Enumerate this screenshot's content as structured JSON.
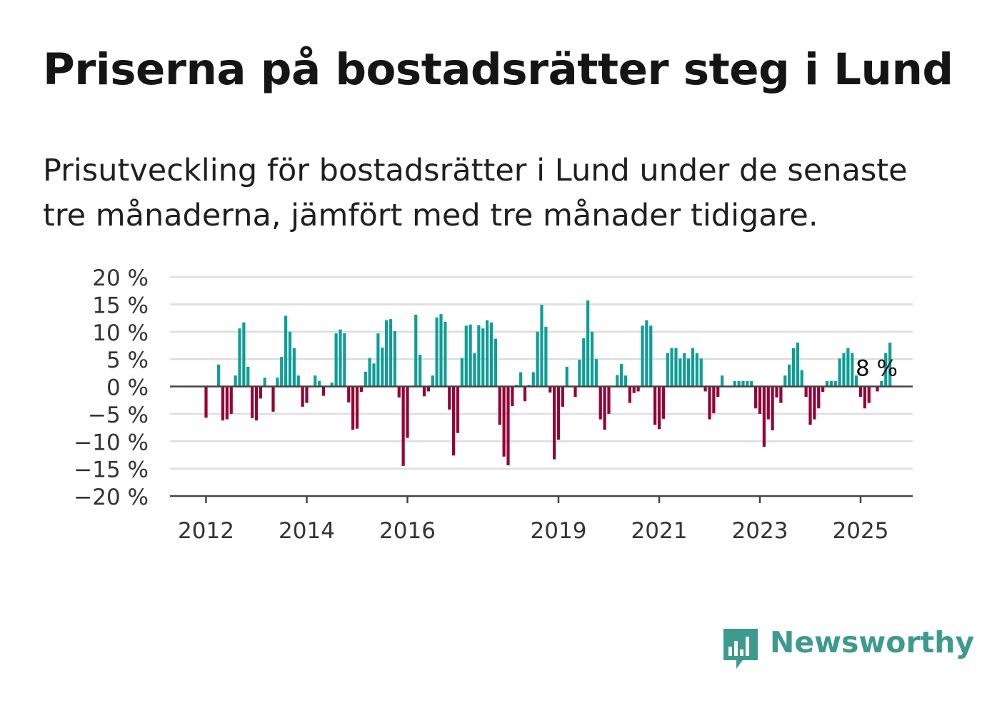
{
  "title": "Priserna på bostadsrätter steg i Lund",
  "subtitle": "Prisutveckling för bostadsrätter i Lund under de senaste tre månaderna, jämfört med tre månader tidigare.",
  "brand": "Newsworthy",
  "colors": {
    "positive": "#0f9e96",
    "negative": "#960035",
    "grid": "#dddddd",
    "axis": "#444444",
    "text": "#333333"
  },
  "chart_data": {
    "type": "bar",
    "ylim": [
      -20,
      20
    ],
    "yticks": [
      {
        "v": 20,
        "label": "20 %"
      },
      {
        "v": 15,
        "label": "15 %"
      },
      {
        "v": 10,
        "label": "10 %"
      },
      {
        "v": 5,
        "label": "5 %"
      },
      {
        "v": 0,
        "label": "0 %"
      },
      {
        "v": -5,
        "label": "−5 %"
      },
      {
        "v": -10,
        "label": "−10 %"
      },
      {
        "v": -15,
        "label": "−15 %"
      },
      {
        "v": -20,
        "label": "−20 %"
      }
    ],
    "x_ticks": [
      "2012",
      "2014",
      "2016",
      "2019",
      "2021",
      "2023",
      "2025"
    ],
    "x_tick_index": [
      0,
      24,
      48,
      84,
      108,
      132,
      156
    ],
    "grid": true,
    "annotation": {
      "text": "8 %",
      "index": 160
    },
    "values": [
      -5.7,
      0,
      0,
      4,
      -6.2,
      -6,
      -5,
      2,
      10.6,
      11.7,
      3.6,
      -5.8,
      -6.2,
      -2.2,
      1.6,
      0,
      -4.6,
      1.6,
      5.4,
      12.9,
      10,
      7,
      2,
      -3.7,
      -3,
      0,
      2,
      1,
      -1.7,
      0,
      0.7,
      9.7,
      10.4,
      9.7,
      -2.9,
      -7.9,
      -7.7,
      -1,
      2.7,
      5.2,
      4.2,
      9.7,
      7.1,
      12.1,
      12.3,
      10.1,
      -2,
      -14.5,
      -9.4,
      0,
      13.1,
      5.8,
      -1.8,
      -0.9,
      2,
      12.6,
      13.2,
      11.8,
      -4.2,
      -12.6,
      -8.5,
      5.2,
      11.1,
      11.3,
      6.1,
      11.2,
      10.6,
      12.1,
      11.7,
      8.7,
      -7,
      -12.8,
      -14.4,
      -3.6,
      0.3,
      2.6,
      -2.7,
      0.3,
      2.6,
      10,
      14.9,
      10.9,
      -1.1,
      -13.3,
      -9.7,
      -3.7,
      3.6,
      0,
      -1.9,
      4.9,
      8.8,
      15.7,
      10,
      5,
      -6,
      -7.9,
      -5,
      0,
      2.1,
      4.1,
      2,
      -3,
      -1.2,
      -0.9,
      11.1,
      12.1,
      11.1,
      -7,
      -7.8,
      -5.9,
      6.1,
      7,
      7,
      5.1,
      6.1,
      5.1,
      7,
      6.1,
      5.1,
      -0.9,
      -6,
      -4.9,
      -1.9,
      2,
      0,
      0,
      1,
      1,
      1,
      1,
      1,
      -4,
      -5,
      -11,
      -6,
      -8,
      -2,
      -3,
      2,
      4,
      7,
      8,
      3,
      -1.9,
      -7,
      -6,
      -4,
      -1,
      1,
      1,
      1,
      5.1,
      6.1,
      7,
      6.1,
      2,
      -1.9,
      -4,
      -3,
      0,
      -0.9,
      1,
      6.1,
      8
    ]
  }
}
